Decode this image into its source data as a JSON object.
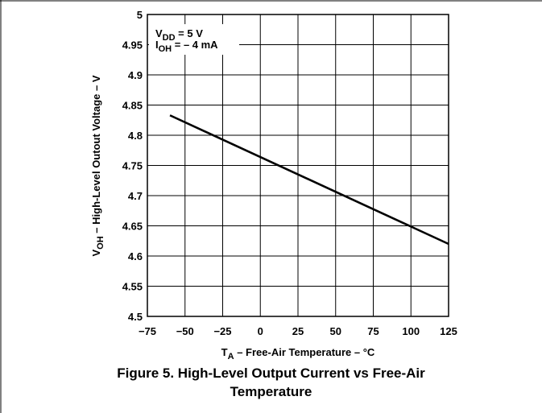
{
  "chart_data": {
    "type": "line",
    "x": [
      -60,
      125
    ],
    "series": [
      {
        "values": [
          4.833,
          4.62
        ]
      }
    ],
    "xlim": [
      -75,
      125
    ],
    "ylim": [
      4.5,
      5.0
    ],
    "x_ticks": [
      "−75",
      "−50",
      "−25",
      "0",
      "25",
      "50",
      "75",
      "100",
      "125"
    ],
    "y_ticks": [
      "5",
      "4.95",
      "4.9",
      "4.85",
      "4.8",
      "4.75",
      "4.7",
      "4.65",
      "4.6",
      "4.55",
      "4.5"
    ],
    "ylabel": {
      "main": "V",
      "sub": "OH",
      "rest": " – High-Level Outout Voltage – V"
    },
    "xlabel": {
      "main": "T",
      "sub": "A",
      "rest": " – Free-Air Temperature – °C"
    },
    "annotations": [
      {
        "main": "V",
        "sub": "DD",
        "rest": " = 5 V"
      },
      {
        "main": "I",
        "sub": "OH",
        "rest": " = – 4 mA"
      }
    ],
    "grid": true
  },
  "caption": {
    "line1": "Figure 5. High-Level Output Current vs Free-Air",
    "line2": "Temperature"
  }
}
